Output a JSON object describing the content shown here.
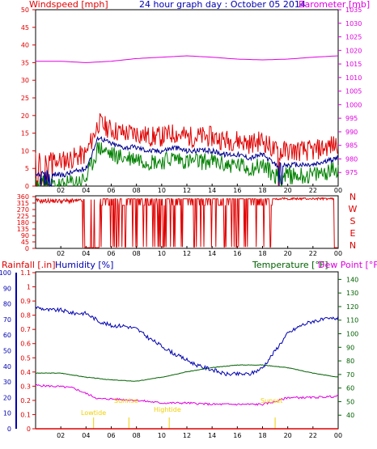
{
  "header": {
    "wind_label": "Windspeed [mph]",
    "title": "24 hour graph day : October 05 2014",
    "baro_label": "Barometer [mb]"
  },
  "lower_header": {
    "rain_label": "Rainfall [.in]",
    "humidity_label": "Humidity [%]",
    "temp_label": "Temperature [°F]",
    "dew_label": "Dew Point [°F]"
  },
  "colors": {
    "wind": "#e00000",
    "gust": "#e00000",
    "avg": "#000090",
    "low": "#008000",
    "baro": "#e000e0",
    "dir": "#e00000",
    "rain": "#e00000",
    "humidity": "#0000b0",
    "temperature": "#006000",
    "dewpoint": "#e000e0",
    "label_yellow": "#f0d000"
  },
  "annotations": {
    "lowtide": "Lowtide",
    "sunrise": "Sunrise",
    "sunset": "Sunset",
    "hightide": "Hightide"
  },
  "chart_data": [
    {
      "type": "line",
      "title": "24 hour graph day : October 05 2014",
      "x_ticks": [
        "02",
        "04",
        "06",
        "08",
        "10",
        "12",
        "14",
        "16",
        "18",
        "20",
        "22",
        "00"
      ],
      "y_left": {
        "label": "Windspeed [mph]",
        "lim": [
          0,
          50
        ],
        "ticks": [
          0,
          5,
          10,
          15,
          20,
          25,
          30,
          35,
          40,
          45,
          50
        ]
      },
      "y_right": {
        "label": "Barometer [mb]",
        "lim": [
          970,
          1035
        ],
        "ticks": [
          975,
          980,
          985,
          990,
          995,
          1000,
          1005,
          1010,
          1015,
          1020,
          1025,
          1030,
          1035
        ]
      },
      "series": [
        {
          "name": "Windspeed [mph]",
          "x": [
            0,
            1,
            2,
            3,
            4,
            5,
            6,
            7,
            8,
            9,
            10,
            11,
            12,
            13,
            14,
            15,
            16,
            17,
            18,
            19,
            20,
            21,
            22,
            23,
            24
          ],
          "values": [
            3,
            4,
            3,
            4,
            5,
            14,
            12,
            11,
            11,
            10,
            10,
            11,
            10,
            10,
            10,
            9,
            9,
            8,
            9,
            6,
            6,
            6,
            6,
            7,
            8
          ]
        },
        {
          "name": "Barometer [mb]",
          "x": [
            0,
            2,
            4,
            6,
            8,
            10,
            12,
            14,
            16,
            18,
            20,
            22,
            24
          ],
          "values": [
            1016,
            1016,
            1015.5,
            1016,
            1017,
            1017.5,
            1018,
            1017.5,
            1016.8,
            1016.5,
            1016.8,
            1017.5,
            1018
          ]
        }
      ]
    },
    {
      "type": "line",
      "title": "",
      "x_ticks": [
        "02",
        "04",
        "06",
        "08",
        "10",
        "12",
        "14",
        "16",
        "18",
        "20",
        "22",
        "00"
      ],
      "y_left": {
        "label": "",
        "lim": [
          0,
          360
        ],
        "ticks": [
          0,
          45,
          90,
          135,
          180,
          225,
          270,
          315,
          360
        ]
      },
      "y_right_labels": [
        "N",
        "W",
        "S",
        "E",
        "N"
      ]
    },
    {
      "type": "line",
      "title": "",
      "x_ticks": [
        "02",
        "04",
        "06",
        "08",
        "10",
        "12",
        "14",
        "16",
        "18",
        "20",
        "22",
        "00"
      ],
      "y_rain": {
        "label": "Rainfall [.in]",
        "lim": [
          0,
          1.1
        ],
        "ticks": [
          "0",
          "0.1",
          "0.2",
          "0.3",
          "0.4",
          "0.5",
          "0.6",
          "0.7",
          "0.8",
          "0.9",
          "1",
          "1.1"
        ]
      },
      "y_humidity": {
        "label": "Humidity [%]",
        "lim": [
          0,
          100
        ],
        "ticks": [
          0,
          10,
          20,
          30,
          40,
          50,
          60,
          70,
          80,
          90,
          100
        ]
      },
      "y_temp": {
        "label": "Temperature [°F]",
        "lim": [
          30,
          145
        ],
        "ticks": [
          40,
          50,
          60,
          70,
          80,
          90,
          100,
          110,
          120,
          130,
          140
        ]
      },
      "series": [
        {
          "name": "Humidity [%]",
          "x": [
            0,
            1,
            2,
            3,
            4,
            5,
            6,
            7,
            8,
            9,
            10,
            11,
            12,
            13,
            14,
            15,
            16,
            17,
            18,
            19,
            20,
            21,
            22,
            23,
            24
          ],
          "values": [
            78,
            76,
            76,
            74,
            74,
            69,
            66,
            66,
            64,
            58,
            53,
            48,
            44,
            40,
            38,
            35,
            35,
            35,
            39,
            50,
            61,
            66,
            69,
            70,
            71
          ]
        },
        {
          "name": "Temperature [°F]",
          "x": [
            0,
            2,
            4,
            6,
            8,
            10,
            12,
            14,
            16,
            18,
            20,
            22,
            24
          ],
          "values": [
            71,
            71,
            68,
            66,
            65,
            68,
            72,
            75,
            77,
            77,
            75,
            71,
            68
          ]
        },
        {
          "name": "Dew Point [°F]",
          "x": [
            0,
            2,
            3,
            4,
            5,
            6,
            8,
            10,
            12,
            14,
            16,
            18,
            19,
            20,
            22,
            24
          ],
          "values": [
            62,
            61,
            60,
            56,
            52,
            52,
            51,
            49,
            49,
            48,
            48,
            48,
            50,
            53,
            53,
            54
          ]
        }
      ]
    }
  ]
}
